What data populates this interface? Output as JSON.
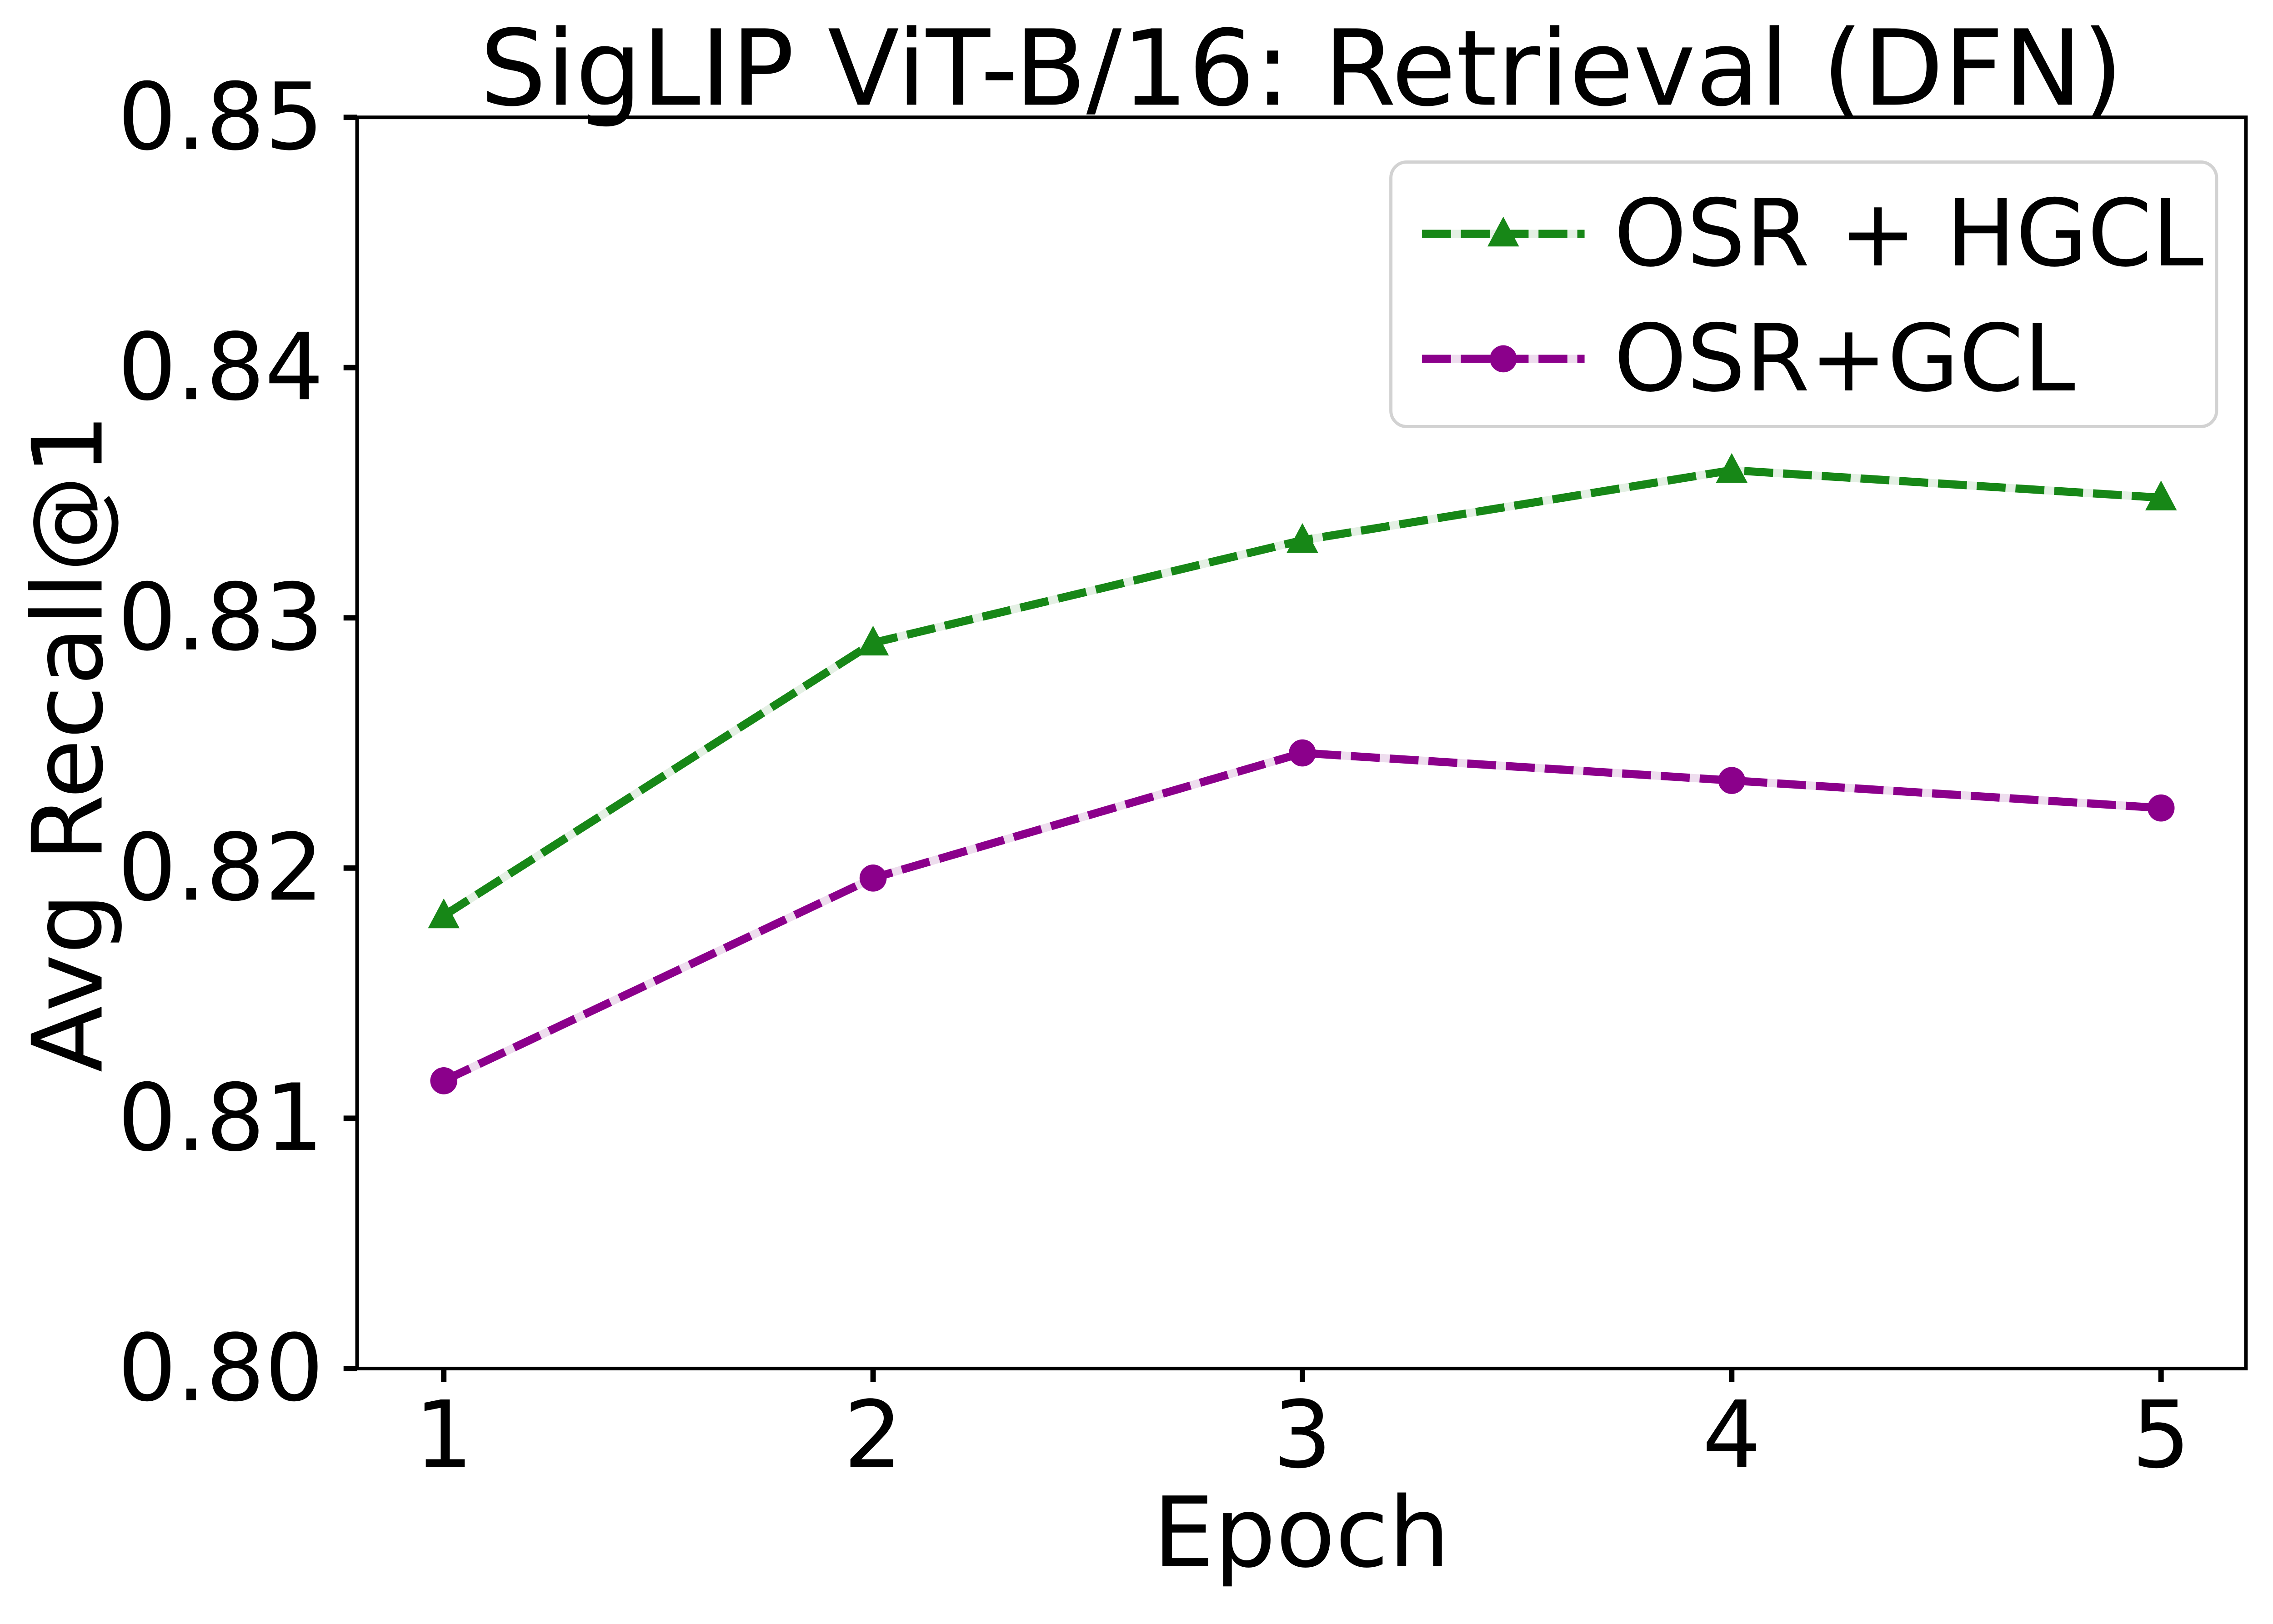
{
  "title": "SigLIP ViT-B/16: Retrieval (DFN)",
  "x_axis": {
    "label": "Epoch",
    "ticks": [
      "1",
      "2",
      "3",
      "4",
      "5"
    ]
  },
  "y_axis": {
    "label": "Avg Recall@1",
    "ticks": [
      "0.80",
      "0.81",
      "0.82",
      "0.83",
      "0.84",
      "0.85"
    ]
  },
  "legend": {
    "position": "upper right",
    "entries": [
      {
        "label": "OSR + HGCL",
        "marker": "triangle-marker",
        "color": "#178717"
      },
      {
        "label": "OSR+GCL",
        "marker": "circle-marker",
        "color": "#8b008b"
      }
    ]
  },
  "colors": {
    "green": "#178717",
    "green_pale": "#e4f0e4",
    "purple": "#8b008b",
    "purple_pale": "#eeddee",
    "axis": "#000000",
    "legend_border": "#d2d2d2",
    "background": "#ffffff"
  },
  "chart_data": {
    "type": "line",
    "title": "SigLIP ViT-B/16: Retrieval (DFN)",
    "xlabel": "Epoch",
    "ylabel": "Avg Recall@1",
    "x": [
      1,
      2,
      3,
      4,
      5
    ],
    "xlim": [
      0.8,
      5.2
    ],
    "ylim": [
      0.8,
      0.85
    ],
    "grid": false,
    "legend_position": "upper right",
    "line_style": "dashed",
    "series": [
      {
        "name": "OSR + HGCL",
        "marker": "triangle",
        "color": "#178717",
        "color_pale": "#e4f0e4",
        "values": [
          0.8181,
          0.829,
          0.8331,
          0.8359,
          0.8348
        ]
      },
      {
        "name": "OSR+GCL",
        "marker": "circle",
        "color": "#8b008b",
        "color_pale": "#eeddee",
        "values": [
          0.8115,
          0.8196,
          0.8246,
          0.8235,
          0.8224
        ]
      }
    ]
  }
}
